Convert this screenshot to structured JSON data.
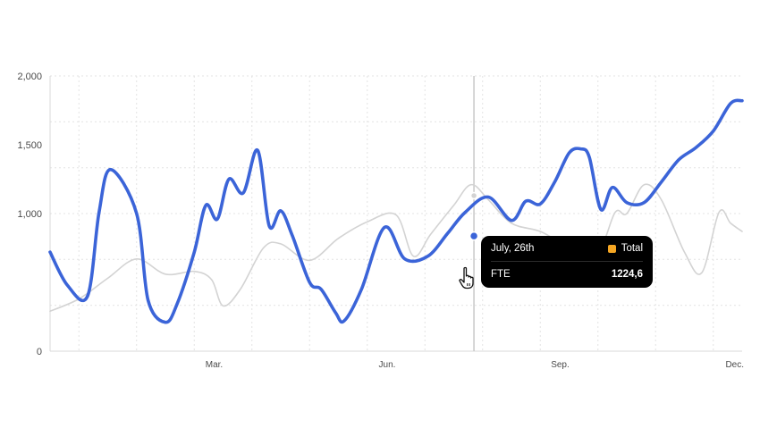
{
  "colors": {
    "primary": "#3b64d8",
    "secondary": "#d3d3d3",
    "grid": "#e3e3e3",
    "axis": "#d8d8d8",
    "crosshair": "#c8c8c8",
    "tooltip_bg": "#000000",
    "swatch": "#f5a623"
  },
  "chart_data": {
    "type": "line",
    "ylim": [
      0,
      2000
    ],
    "xlim": [
      0,
      12
    ],
    "y_ticks": [
      {
        "value": 0,
        "label": "0"
      },
      {
        "value": 1000,
        "label": "1,000"
      },
      {
        "value": 1500,
        "label": "1,500"
      },
      {
        "value": 2000,
        "label": "2,000"
      }
    ],
    "x_ticks": [
      {
        "value": 3,
        "label": "Mar."
      },
      {
        "value": 6,
        "label": "Jun."
      },
      {
        "value": 9,
        "label": "Sep."
      },
      {
        "value": 12,
        "label": "Dec."
      }
    ],
    "grid_y": [
      333,
      667,
      1000,
      1333,
      1667,
      2000
    ],
    "grid_x": [
      0.5,
      1.5,
      2.5,
      3.5,
      4.5,
      5.5,
      6.5,
      7.5,
      8.5,
      9.5,
      10.5,
      11.5
    ],
    "grid": true,
    "series": [
      {
        "key": "secondary",
        "x": [
          0.0,
          0.5,
          1.0,
          1.5,
          2.0,
          2.5,
          2.8,
          3.0,
          3.3,
          3.7,
          4.0,
          4.5,
          5.0,
          5.5,
          6.0,
          6.3,
          6.6,
          7.0,
          7.3,
          7.6,
          8.0,
          8.5,
          9.0,
          9.5,
          9.8,
          10.0,
          10.3,
          10.6,
          11.0,
          11.3,
          11.6,
          11.8,
          12.0
        ],
        "y": [
          290,
          380,
          530,
          670,
          560,
          580,
          520,
          330,
          450,
          750,
          780,
          660,
          820,
          940,
          990,
          690,
          850,
          1060,
          1210,
          1100,
          930,
          870,
          760,
          730,
          1010,
          1000,
          1210,
          1100,
          720,
          570,
          1010,
          930,
          870
        ]
      },
      {
        "key": "primary",
        "x": [
          0.0,
          0.3,
          0.65,
          0.85,
          1.05,
          1.5,
          1.7,
          2.0,
          2.2,
          2.5,
          2.7,
          2.9,
          3.1,
          3.35,
          3.6,
          3.8,
          4.0,
          4.2,
          4.5,
          4.7,
          4.95,
          5.1,
          5.4,
          5.8,
          6.15,
          6.55,
          6.9,
          7.2,
          7.6,
          8.0,
          8.25,
          8.5,
          8.75,
          9.0,
          9.2,
          9.35,
          9.55,
          9.75,
          10.0,
          10.3,
          10.6,
          10.9,
          11.2,
          11.5,
          11.8,
          12.0
        ],
        "y": [
          720,
          480,
          400,
          1010,
          1320,
          1000,
          370,
          210,
          340,
          720,
          1060,
          960,
          1250,
          1150,
          1460,
          910,
          1020,
          840,
          500,
          450,
          280,
          220,
          450,
          900,
          670,
          690,
          860,
          1010,
          1120,
          950,
          1090,
          1070,
          1230,
          1440,
          1470,
          1410,
          1030,
          1190,
          1080,
          1080,
          1230,
          1390,
          1480,
          1600,
          1800,
          1820
        ]
      }
    ],
    "crosshair_x": 7.35,
    "highlight_points": [
      {
        "series": "secondary",
        "x": 7.35,
        "y": 1130
      },
      {
        "series": "primary",
        "x": 7.35,
        "y": 837
      }
    ]
  },
  "tooltip": {
    "date": "July, 26th",
    "legend": "Total",
    "metric": "FTE",
    "value": "1224,6"
  },
  "cursor_icon": "hand-pointer-icon"
}
